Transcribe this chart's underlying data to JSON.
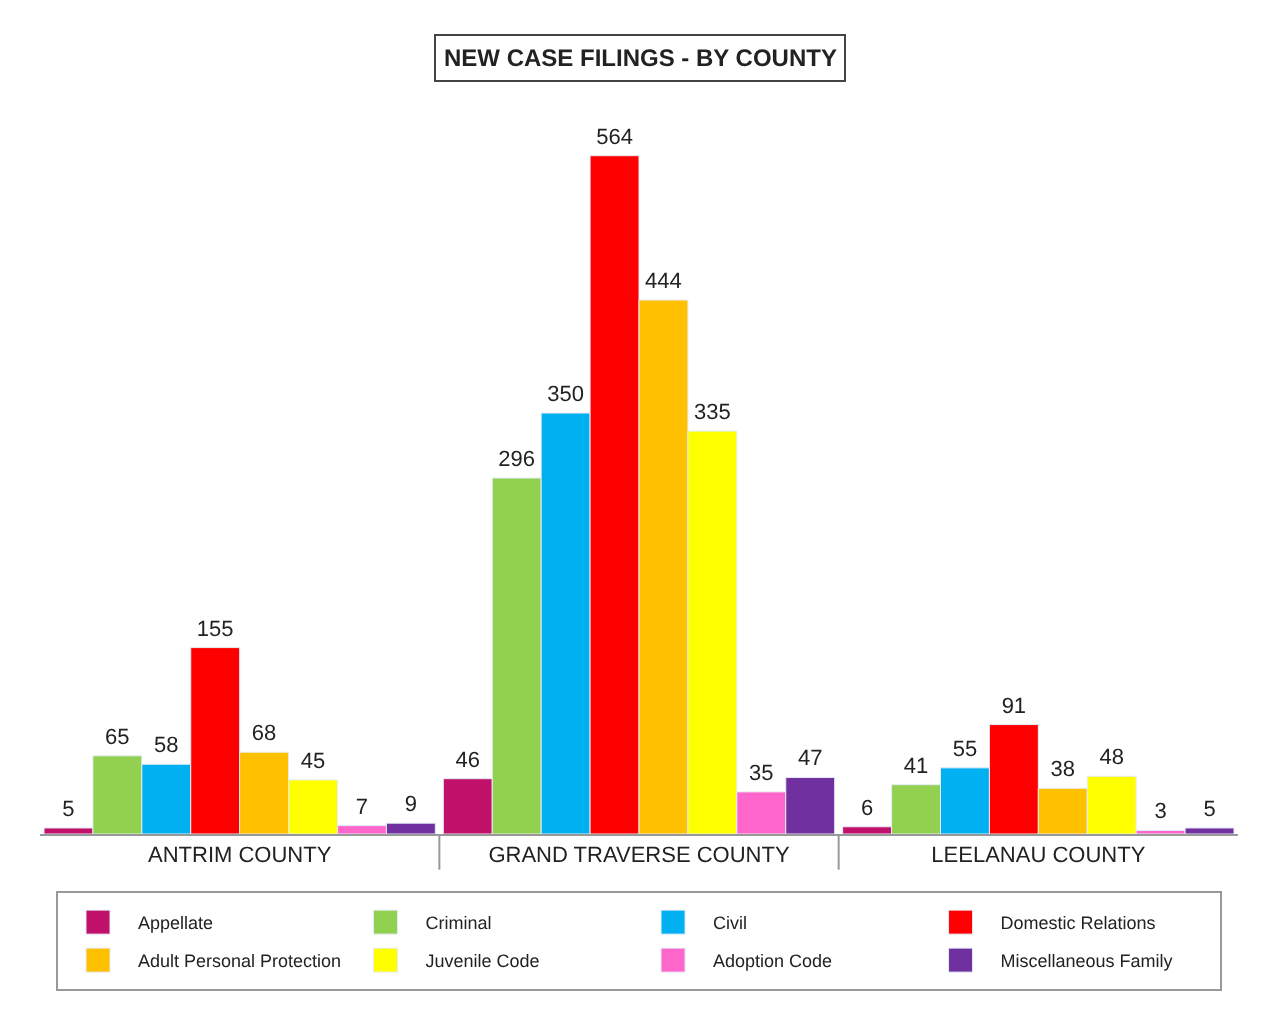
{
  "chart_data": {
    "type": "bar",
    "title": "NEW CASE FILINGS - BY COUNTY",
    "categories": [
      "ANTRIM COUNTY",
      "GRAND TRAVERSE COUNTY",
      "LEELANAU COUNTY"
    ],
    "series": [
      {
        "name": "Appellate",
        "color": "#c0106a",
        "values": [
          5,
          46,
          6
        ]
      },
      {
        "name": "Criminal",
        "color": "#92d050",
        "values": [
          65,
          296,
          41
        ]
      },
      {
        "name": "Civil",
        "color": "#00b0f0",
        "values": [
          58,
          350,
          55
        ]
      },
      {
        "name": "Domestic Relations",
        "color": "#ff0000",
        "values": [
          155,
          564,
          91
        ]
      },
      {
        "name": "Adult Personal Protection",
        "color": "#ffc000",
        "values": [
          68,
          444,
          38
        ]
      },
      {
        "name": "Juvenile Code",
        "color": "#ffff00",
        "values": [
          45,
          335,
          48
        ]
      },
      {
        "name": "Adoption Code",
        "color": "#ff66cc",
        "values": [
          7,
          35,
          3
        ]
      },
      {
        "name": "Miscellaneous Family",
        "color": "#7030a0",
        "values": [
          9,
          47,
          5
        ]
      }
    ],
    "data_labels": true,
    "legend": "bottom"
  }
}
